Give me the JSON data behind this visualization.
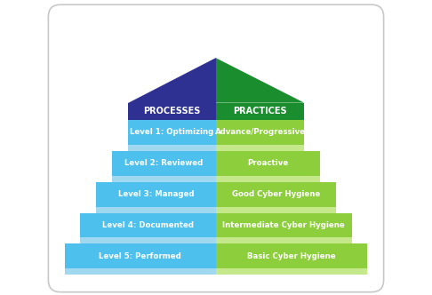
{
  "levels": [
    {
      "left_label": "Level 5: Performed",
      "right_label": "Basic Cyber Hygiene"
    },
    {
      "left_label": "Level 4: Documented",
      "right_label": "Intermediate Cyber Hygiene"
    },
    {
      "left_label": "Level 3: Managed",
      "right_label": "Good Cyber Hygiene"
    },
    {
      "left_label": "Level 2: Reviewed",
      "right_label": "Proactive"
    },
    {
      "left_label": "Level 1: Optimizing",
      "right_label": "Advance/Progressive"
    }
  ],
  "blue_main": "#4DC0EE",
  "green_main": "#8DCE3C",
  "blue_light": "#A0D8F0",
  "green_light": "#C5E88A",
  "header_blue": "#2E3192",
  "header_green": "#1A8E2E",
  "text_color": "#ffffff",
  "bg_color": "#ffffff",
  "border_color": "#c8c8c8",
  "shadow_bottom": "#c0d8e8",
  "shadow_right_green": "#b8dc78"
}
